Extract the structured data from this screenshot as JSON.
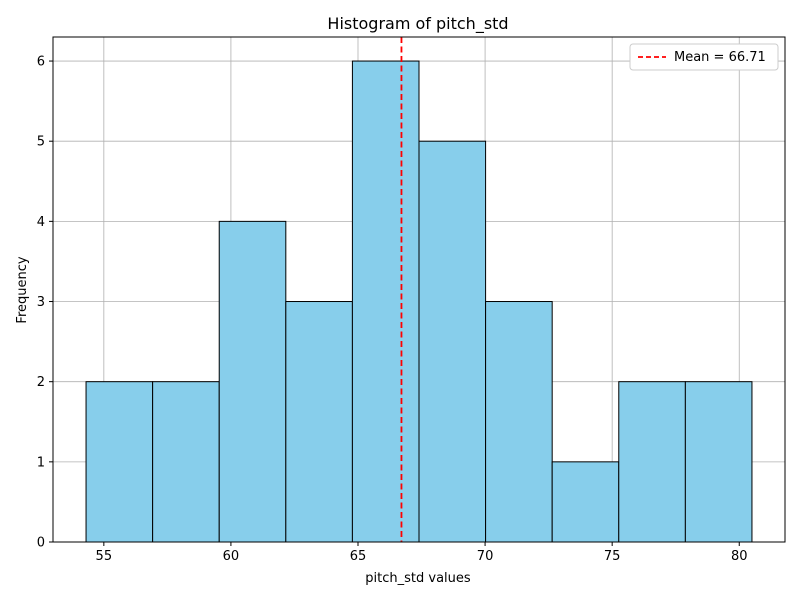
{
  "chart_data": {
    "type": "bar",
    "title": "Histogram of pitch_std",
    "xlabel": "pitch_std values",
    "ylabel": "Frequency",
    "bins": [
      {
        "start": 54.3,
        "end": 56.92,
        "count": 2
      },
      {
        "start": 56.92,
        "end": 59.54,
        "count": 2
      },
      {
        "start": 59.54,
        "end": 62.16,
        "count": 4
      },
      {
        "start": 62.16,
        "end": 64.78,
        "count": 3
      },
      {
        "start": 64.78,
        "end": 67.4,
        "count": 6
      },
      {
        "start": 67.4,
        "end": 70.02,
        "count": 5
      },
      {
        "start": 70.02,
        "end": 72.64,
        "count": 3
      },
      {
        "start": 72.64,
        "end": 75.26,
        "count": 1
      },
      {
        "start": 75.26,
        "end": 77.88,
        "count": 2
      },
      {
        "start": 77.88,
        "end": 80.5,
        "count": 2
      }
    ],
    "xlim": [
      53.0,
      81.8
    ],
    "ylim": [
      0,
      6.3
    ],
    "xticks": [
      55,
      60,
      65,
      70,
      75,
      80
    ],
    "yticks": [
      0,
      1,
      2,
      3,
      4,
      5,
      6
    ],
    "mean_line": {
      "value": 66.71,
      "label": "Mean = 66.71",
      "color": "#ff0000"
    },
    "bar_color": "#87ceeb",
    "edge_color": "#000000",
    "grid": true,
    "legend_position": "upper right"
  }
}
